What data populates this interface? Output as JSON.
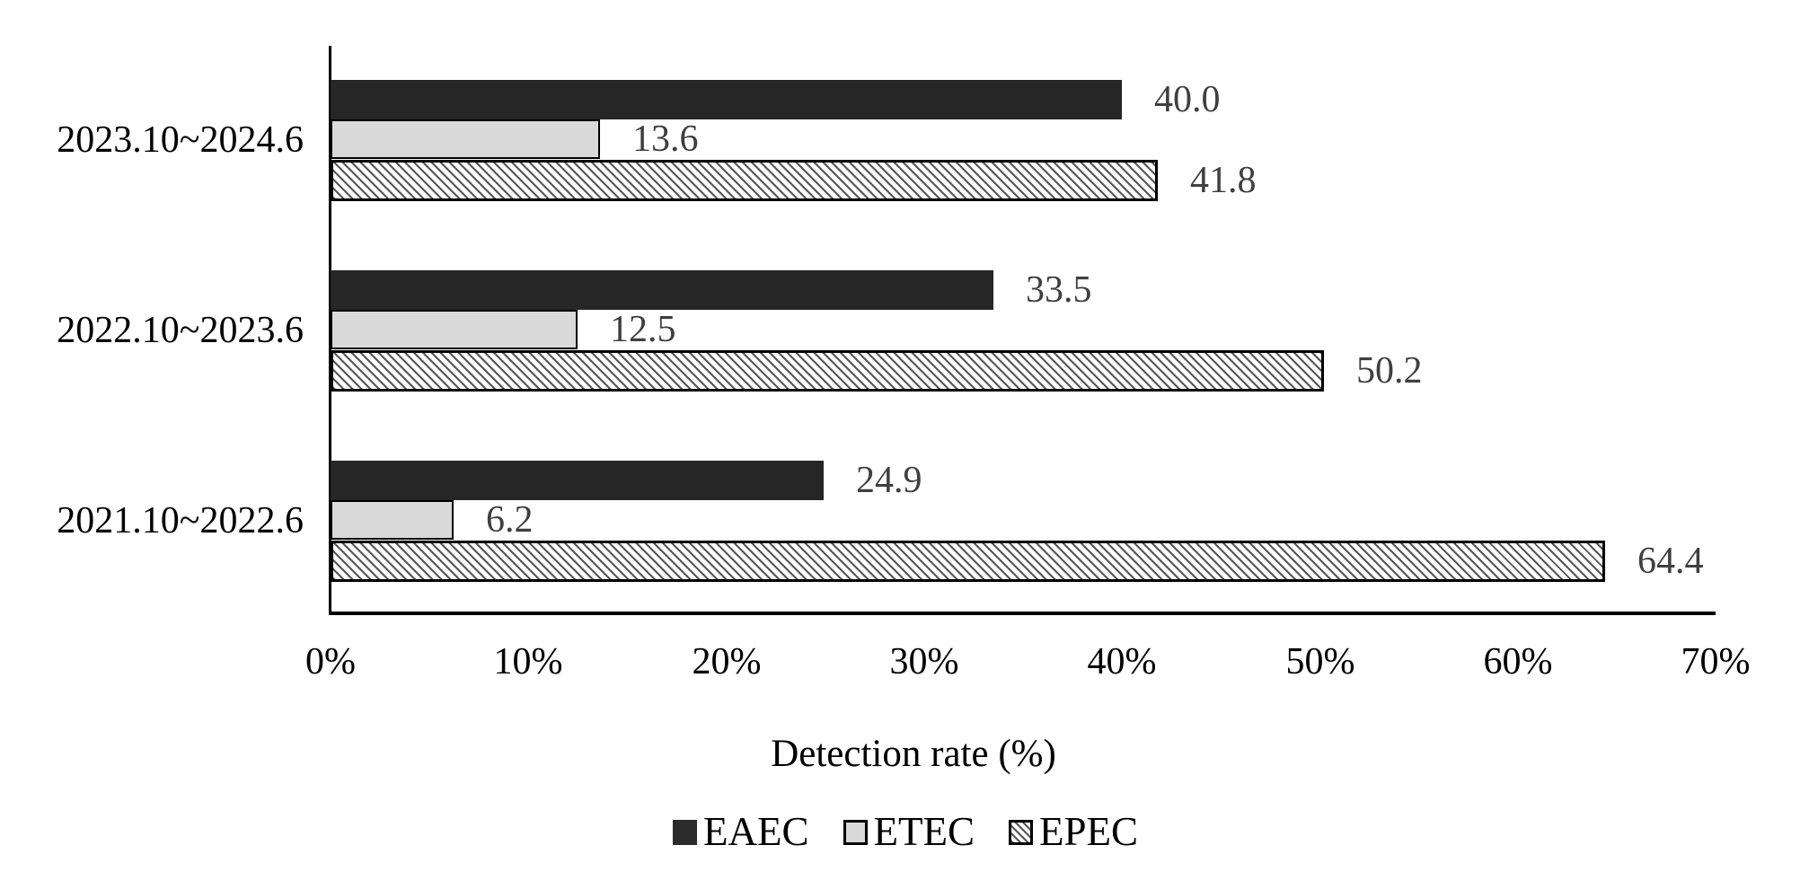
{
  "chart_data": {
    "type": "bar",
    "orientation": "horizontal",
    "title": "",
    "xlabel": "Detection rate (%)",
    "ylabel": "",
    "xlim": [
      0,
      70
    ],
    "grid": false,
    "legend_position": "bottom",
    "categories": [
      "2023.10~2024.6",
      "2022.10~2023.6",
      "2021.10~2022.6"
    ],
    "series": [
      {
        "name": "EAEC",
        "values": [
          40.0,
          33.5,
          24.9
        ],
        "labels": [
          "40.0",
          "33.5",
          "24.9"
        ],
        "fill": "#262626",
        "pattern": "solid"
      },
      {
        "name": "ETEC",
        "values": [
          13.6,
          12.5,
          6.2
        ],
        "labels": [
          "13.6",
          "12.5",
          "6.2"
        ],
        "fill": "#d9d9d9",
        "pattern": "solid"
      },
      {
        "name": "EPEC",
        "values": [
          41.8,
          50.2,
          64.4
        ],
        "labels": [
          "41.8",
          "50.2",
          "64.4"
        ],
        "fill": "#ffffff",
        "pattern": "diagonal-hatch",
        "hatch_color": "#565656"
      }
    ],
    "x_ticks": [
      0,
      10,
      20,
      30,
      40,
      50,
      60,
      70
    ],
    "x_tick_labels": [
      "0%",
      "10%",
      "20%",
      "30%",
      "40%",
      "50%",
      "60%",
      "70%"
    ],
    "axis_color": "#000000",
    "value_label_color": "#3f3f3f"
  }
}
